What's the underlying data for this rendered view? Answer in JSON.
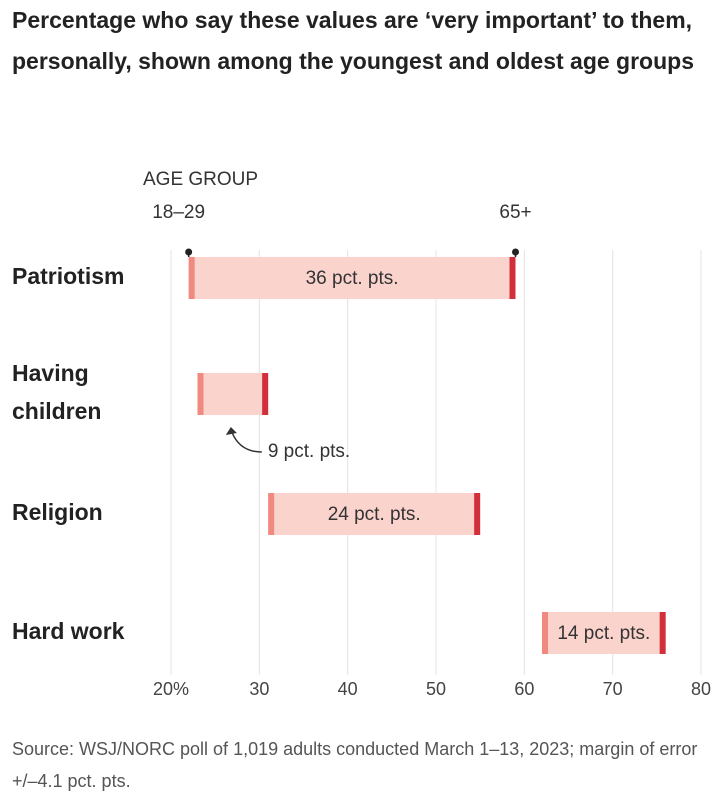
{
  "chart_data": {
    "type": "dumbbell",
    "title": "Percentage who say these values are ‘very important’ to them, personally, shown among the youngest and oldest age groups",
    "legend_title": "AGE GROUP",
    "categories": [
      "Patriotism",
      "Having children",
      "Religion",
      "Hard work"
    ],
    "series": [
      {
        "name": "18–29",
        "color": "#f08a80",
        "values": [
          22,
          23,
          31,
          62
        ]
      },
      {
        "name": "65+",
        "color": "#d12f3a",
        "values": [
          59,
          31,
          55,
          76
        ]
      }
    ],
    "bar_color": "#fbd3cd",
    "gap_labels": [
      "36 pct. pts.",
      "9 pct. pts.",
      "24 pct. pts.",
      "14 pct. pts."
    ],
    "xlim": [
      20,
      80
    ],
    "xticks": [
      {
        "value": 20,
        "label": "20%"
      },
      30,
      40,
      50,
      60,
      70,
      80
    ],
    "grid": true,
    "source": "Source: WSJ/NORC poll of 1,019 adults conducted March 1–13, 2023; margin of error +/–4.1 pct. pts."
  }
}
